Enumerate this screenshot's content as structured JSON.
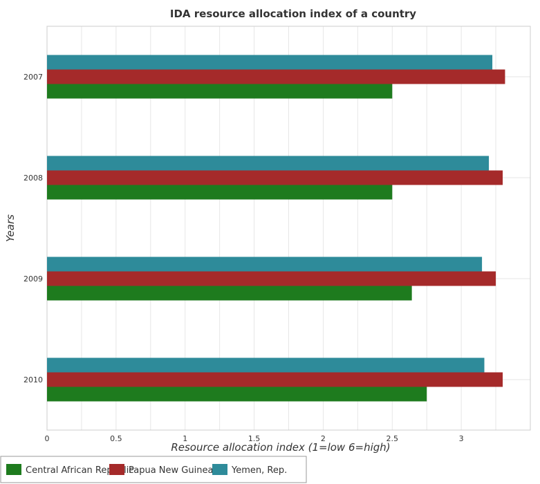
{
  "chart_data": {
    "type": "bar",
    "orientation": "horizontal",
    "title": "IDA resource allocation index of a country",
    "xlabel": "Resource allocation index (1=low 6=high)",
    "ylabel": "Years",
    "categories": [
      "2007",
      "2008",
      "2009",
      "2010"
    ],
    "xlim": [
      0,
      3.5
    ],
    "xticks": [
      0,
      0.5,
      1,
      1.5,
      2,
      2.5,
      3
    ],
    "xtick_labels": [
      "0",
      "0.5",
      "1",
      "1.5",
      "2",
      "2.5",
      "3"
    ],
    "grid": true,
    "legend_position": "bottom-left",
    "series": [
      {
        "name": "Central African Republic",
        "color": "#1e7b1e",
        "values": [
          2.5,
          2.5,
          2.642,
          2.75
        ]
      },
      {
        "name": "Papua New Guinea",
        "color": "#a52a2a",
        "values": [
          3.317,
          3.3,
          3.25,
          3.3
        ]
      },
      {
        "name": "Yemen, Rep.",
        "color": "#2e8b9a",
        "values": [
          3.225,
          3.2,
          3.15,
          3.167
        ]
      }
    ]
  }
}
